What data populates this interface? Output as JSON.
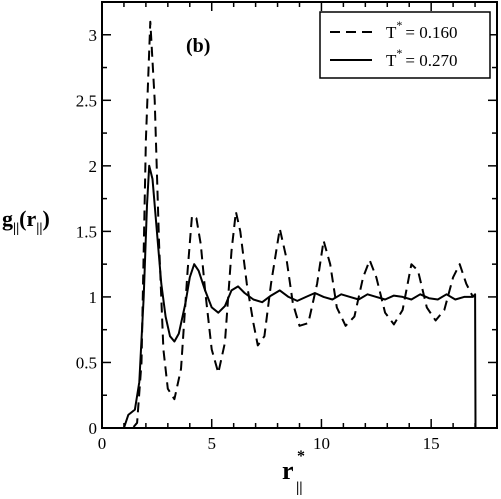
{
  "chart_data": {
    "type": "line",
    "panel_label": "(b)",
    "xlabel": {
      "base": "r",
      "sup": "*",
      "sub": "||"
    },
    "ylabel": {
      "base": "g",
      "sub": "||",
      "paren_base": "r",
      "paren_sub": "||"
    },
    "xlim": [
      0,
      18
    ],
    "ylim": [
      0,
      3.25
    ],
    "x_ticks": [
      0,
      5,
      10,
      15
    ],
    "x_tick_labels": [
      "0",
      "5",
      "10",
      "15"
    ],
    "y_ticks": [
      0,
      0.5,
      1,
      1.5,
      2,
      2.5,
      3
    ],
    "y_tick_labels": [
      "0",
      "0.5",
      "1",
      "1.5",
      "2",
      "2.5",
      "3"
    ],
    "grid": false,
    "legend_position": "top-right",
    "series": [
      {
        "legend_base": "T",
        "legend_sup": "*",
        "legend_value": "= 0.160",
        "style": "dashed",
        "color": "#000000",
        "points": [
          [
            0,
            0
          ],
          [
            1.4,
            0
          ],
          [
            1.6,
            0.04
          ],
          [
            1.8,
            0.5
          ],
          [
            2.0,
            2.2
          ],
          [
            2.2,
            3.1
          ],
          [
            2.4,
            2.5
          ],
          [
            2.6,
            1.4
          ],
          [
            2.8,
            0.6
          ],
          [
            3.0,
            0.3
          ],
          [
            3.3,
            0.22
          ],
          [
            3.6,
            0.45
          ],
          [
            3.9,
            1.2
          ],
          [
            4.1,
            1.62
          ],
          [
            4.3,
            1.6
          ],
          [
            4.5,
            1.4
          ],
          [
            4.7,
            1.05
          ],
          [
            5.0,
            0.6
          ],
          [
            5.3,
            0.42
          ],
          [
            5.6,
            0.65
          ],
          [
            5.9,
            1.35
          ],
          [
            6.1,
            1.65
          ],
          [
            6.3,
            1.5
          ],
          [
            6.6,
            1.1
          ],
          [
            6.9,
            0.8
          ],
          [
            7.1,
            0.63
          ],
          [
            7.4,
            0.7
          ],
          [
            7.7,
            1.1
          ],
          [
            8.1,
            1.52
          ],
          [
            8.4,
            1.3
          ],
          [
            8.7,
            0.95
          ],
          [
            9.0,
            0.78
          ],
          [
            9.4,
            0.8
          ],
          [
            9.8,
            1.1
          ],
          [
            10.1,
            1.43
          ],
          [
            10.4,
            1.25
          ],
          [
            10.7,
            0.92
          ],
          [
            11.1,
            0.78
          ],
          [
            11.5,
            0.85
          ],
          [
            11.9,
            1.15
          ],
          [
            12.2,
            1.28
          ],
          [
            12.5,
            1.15
          ],
          [
            12.9,
            0.88
          ],
          [
            13.3,
            0.79
          ],
          [
            13.7,
            0.9
          ],
          [
            14.1,
            1.25
          ],
          [
            14.4,
            1.2
          ],
          [
            14.8,
            0.92
          ],
          [
            15.2,
            0.82
          ],
          [
            15.6,
            0.9
          ],
          [
            16.0,
            1.15
          ],
          [
            16.3,
            1.25
          ],
          [
            16.6,
            1.1
          ],
          [
            16.9,
            1.0
          ]
        ]
      },
      {
        "legend_base": "T",
        "legend_sup": "*",
        "legend_value": "= 0.270",
        "style": "solid",
        "color": "#000000",
        "points": [
          [
            0,
            0
          ],
          [
            1.0,
            0
          ],
          [
            1.2,
            0.1
          ],
          [
            1.5,
            0.14
          ],
          [
            1.7,
            0.35
          ],
          [
            1.9,
            1.0
          ],
          [
            2.05,
            1.7
          ],
          [
            2.15,
            2.0
          ],
          [
            2.3,
            1.9
          ],
          [
            2.5,
            1.5
          ],
          [
            2.7,
            1.1
          ],
          [
            2.9,
            0.85
          ],
          [
            3.1,
            0.7
          ],
          [
            3.3,
            0.66
          ],
          [
            3.5,
            0.72
          ],
          [
            3.8,
            0.95
          ],
          [
            4.0,
            1.15
          ],
          [
            4.2,
            1.25
          ],
          [
            4.4,
            1.2
          ],
          [
            4.7,
            1.05
          ],
          [
            5.0,
            0.92
          ],
          [
            5.3,
            0.88
          ],
          [
            5.6,
            0.93
          ],
          [
            5.9,
            1.05
          ],
          [
            6.2,
            1.08
          ],
          [
            6.5,
            1.03
          ],
          [
            6.9,
            0.98
          ],
          [
            7.3,
            0.96
          ],
          [
            7.7,
            1.01
          ],
          [
            8.1,
            1.05
          ],
          [
            8.5,
            1.0
          ],
          [
            8.9,
            0.97
          ],
          [
            9.3,
            1.0
          ],
          [
            9.7,
            1.03
          ],
          [
            10.1,
            1.0
          ],
          [
            10.5,
            0.98
          ],
          [
            10.9,
            1.02
          ],
          [
            11.3,
            1.0
          ],
          [
            11.7,
            0.98
          ],
          [
            12.1,
            1.02
          ],
          [
            12.5,
            1.0
          ],
          [
            12.9,
            0.98
          ],
          [
            13.3,
            1.01
          ],
          [
            13.7,
            1.0
          ],
          [
            14.1,
            0.98
          ],
          [
            14.5,
            1.02
          ],
          [
            14.9,
            0.99
          ],
          [
            15.3,
            0.98
          ],
          [
            15.7,
            1.02
          ],
          [
            16.1,
            0.98
          ],
          [
            16.5,
            1.0
          ],
          [
            16.9,
            1.0
          ],
          [
            17.0,
            1.02
          ],
          [
            17.02,
            0.0
          ]
        ]
      }
    ]
  }
}
